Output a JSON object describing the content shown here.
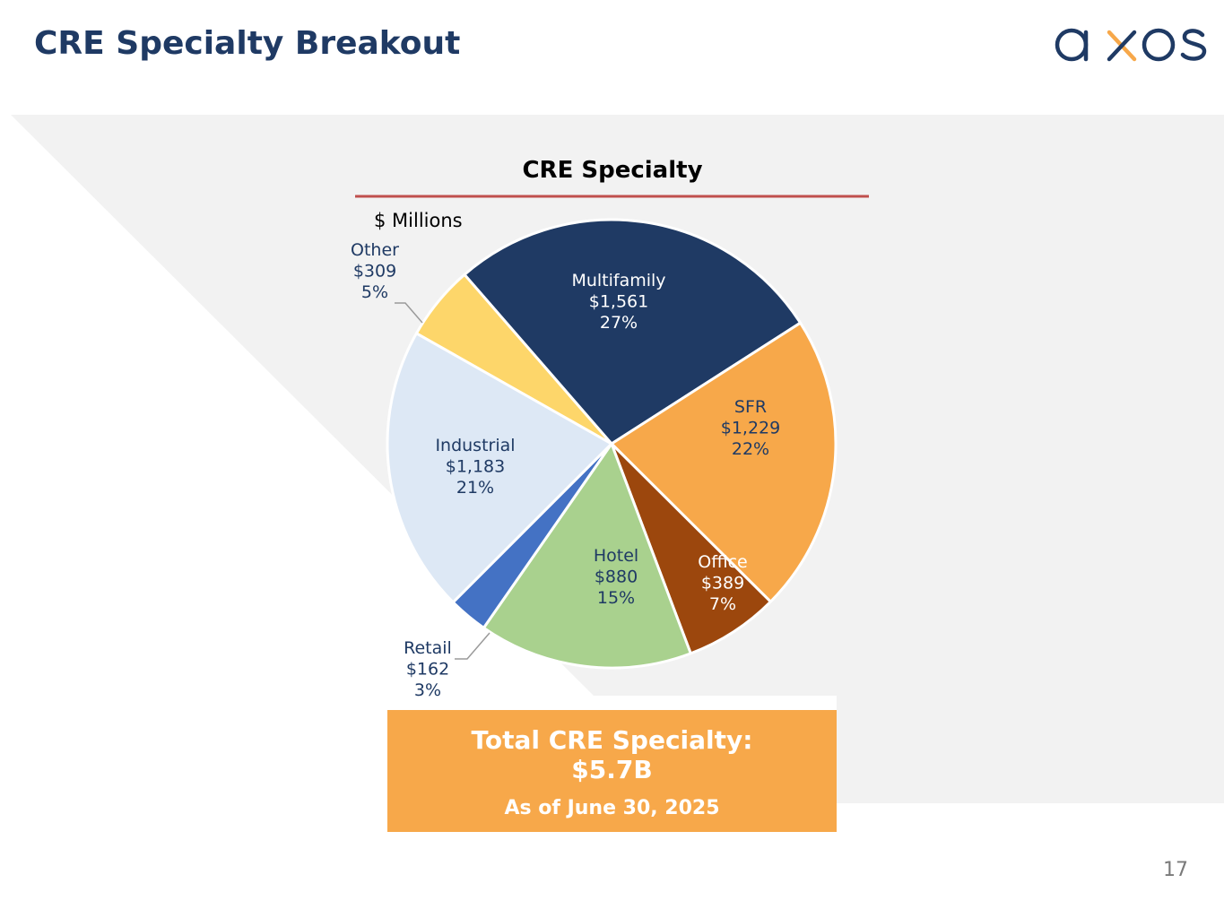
{
  "header": {
    "title": "CRE Specialty Breakout",
    "logo_text": "axos"
  },
  "colors": {
    "navy": "#1f3a64",
    "accent_orange": "#f7a84a",
    "rule_red": "#c0504d"
  },
  "chart_data": {
    "type": "pie",
    "title": "CRE Specialty",
    "unit_label": "$ Millions",
    "slices": [
      {
        "name": "Multifamily",
        "value": 1561,
        "value_label": "$1,561",
        "pct_label": "27%",
        "color": "#1f3a64",
        "text_color": "#ffffff"
      },
      {
        "name": "SFR",
        "value": 1229,
        "value_label": "$1,229",
        "pct_label": "22%",
        "color": "#f7a84a",
        "text_color": "#1f3a64"
      },
      {
        "name": "Office",
        "value": 389,
        "value_label": "$389",
        "pct_label": "7%",
        "color": "#9c470d",
        "text_color": "#ffffff"
      },
      {
        "name": "Hotel",
        "value": 880,
        "value_label": "$880",
        "pct_label": "15%",
        "color": "#a9d18e",
        "text_color": "#1f3a64"
      },
      {
        "name": "Retail",
        "value": 162,
        "value_label": "$162",
        "pct_label": "3%",
        "color": "#4472c4",
        "text_color": "#1f3a64"
      },
      {
        "name": "Industrial",
        "value": 1183,
        "value_label": "$1,183",
        "pct_label": "21%",
        "color": "#dde8f5",
        "text_color": "#1f3a64"
      },
      {
        "name": "Other",
        "value": 309,
        "value_label": "$309",
        "pct_label": "5%",
        "color": "#fdd66a",
        "text_color": "#1f3a64"
      }
    ]
  },
  "total": {
    "label": "Total CRE Specialty:",
    "amount": "$5.7B",
    "date": "As of June 30, 2025"
  },
  "footer": {
    "page_number": "17"
  }
}
